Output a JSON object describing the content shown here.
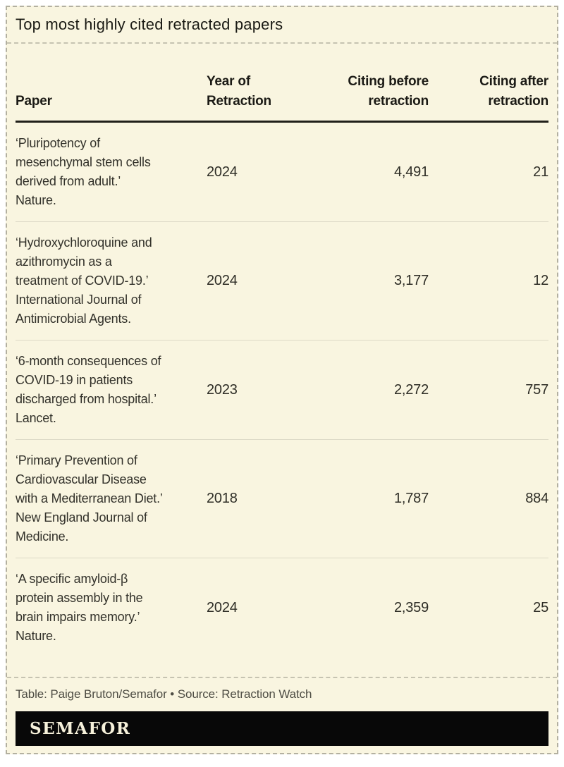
{
  "title": "Top most highly cited retracted papers",
  "chart_data": {
    "type": "table",
    "title": "Top most highly cited retracted papers",
    "columns": [
      "Paper",
      "Year of Retraction",
      "Citing before retraction",
      "Citing after retraction"
    ],
    "rows": [
      {
        "paper": "‘Pluripotency of mesenchymal stem cells derived from adult.’ Nature.",
        "year": 2024,
        "citing_before": 4491,
        "citing_after": 21
      },
      {
        "paper": "‘Hydroxychloroquine and azithromycin as a treatment of COVID-19.’ International Journal of Antimicrobial Agents.",
        "year": 2024,
        "citing_before": 3177,
        "citing_after": 12
      },
      {
        "paper": "‘6-month consequences of COVID-19 in patients discharged from hospital.’ Lancet.",
        "year": 2023,
        "citing_before": 2272,
        "citing_after": 757
      },
      {
        "paper": "‘Primary Prevention of Cardiovascular Disease with a Mediterranean Diet.’ New England Journal of Medicine.",
        "year": 2018,
        "citing_before": 1787,
        "citing_after": 884
      },
      {
        "paper": "‘A specific amyloid-β protein assembly in the brain impairs memory.’ Nature.",
        "year": 2024,
        "citing_before": 2359,
        "citing_after": 25
      }
    ]
  },
  "table": {
    "headers": {
      "paper": "Paper",
      "year": "Year of\nRetraction",
      "before": "Citing before\nretraction",
      "after": "Citing after\nretraction"
    },
    "rows": [
      {
        "paper": "‘Pluripotency of\nmesenchymal stem cells\nderived from adult.’\nNature.",
        "year": "2024",
        "before": "4,491",
        "after": "21"
      },
      {
        "paper": "‘Hydroxychloroquine and\nazithromycin as a\ntreatment of COVID-19.’\nInternational Journal of\nAntimicrobial Agents.",
        "year": "2024",
        "before": "3,177",
        "after": "12"
      },
      {
        "paper": "‘6-month consequences of\nCOVID-19 in patients\ndischarged from hospital.’\nLancet.",
        "year": "2023",
        "before": "2,272",
        "after": "757"
      },
      {
        "paper": "‘Primary Prevention of\nCardiovascular Disease\nwith a Mediterranean Diet.’\nNew England Journal of\nMedicine.",
        "year": "2018",
        "before": "1,787",
        "after": "884"
      },
      {
        "paper": "‘A specific amyloid-β\nprotein assembly in the\nbrain impairs memory.’\nNature.",
        "year": "2024",
        "before": "2,359",
        "after": "25"
      }
    ]
  },
  "footer": {
    "credit": "Table: Paige Bruton/Semafor • Source: Retraction Watch",
    "logo": "SEMAFOR"
  },
  "colors": {
    "background": "#f9f5e0",
    "outer_background": "#ffffff",
    "text": "#32312a",
    "header_rule": "#21201a",
    "row_separator": "#dcd9c6",
    "dashed_border": "#b3b0a0",
    "credit_text": "#4e4d44",
    "logo_bar": "#080808",
    "logo_text": "#f6f1da"
  }
}
